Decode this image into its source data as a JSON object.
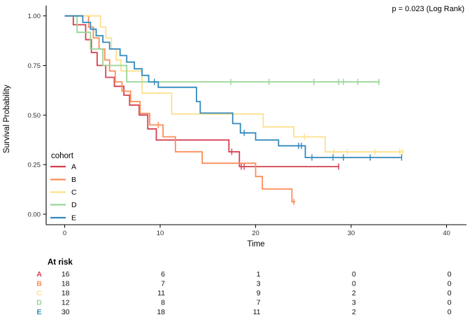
{
  "plot": {
    "pvalue_text": "p = 0.023 (Log Rank)"
  },
  "axes": {
    "x_label": "Time",
    "y_label": "Survival Probability",
    "x_ticks": [
      "0",
      "10",
      "20",
      "30",
      "40"
    ],
    "y_ticks": [
      "1.00",
      "0.75",
      "0.50",
      "0.25",
      "0.00"
    ]
  },
  "legend": {
    "title": "cohort"
  },
  "risk_table": {
    "title": "At risk",
    "times": [
      0,
      10,
      20,
      30,
      40
    ],
    "rows": [
      {
        "label": "A",
        "values": [
          "16",
          "6",
          "1",
          "0",
          "0"
        ]
      },
      {
        "label": "B",
        "values": [
          "18",
          "7",
          "3",
          "0",
          "0"
        ]
      },
      {
        "label": "C",
        "values": [
          "18",
          "11",
          "9",
          "2",
          "0"
        ]
      },
      {
        "label": "D",
        "values": [
          "12",
          "8",
          "7",
          "3",
          "0"
        ]
      },
      {
        "label": "E",
        "values": [
          "30",
          "18",
          "11",
          "2",
          "0"
        ]
      }
    ]
  },
  "chart_data": {
    "type": "line",
    "subtype": "kaplan-meier-step",
    "title": "",
    "xlabel": "Time",
    "ylabel": "Survival Probability",
    "xlim": [
      0,
      42
    ],
    "ylim": [
      0,
      1
    ],
    "x_tick_values": [
      0,
      10,
      20,
      30,
      40
    ],
    "y_tick_values": [
      1.0,
      0.75,
      0.5,
      0.25,
      0.0
    ],
    "grid": false,
    "legend_title": "cohort",
    "legend_position": "inside-bottom-left",
    "annotation": "p = 0.023 (Log Rank)",
    "series": [
      {
        "name": "A",
        "color": "#d53e4f",
        "points": [
          [
            0,
            1
          ],
          [
            0.9,
            0.955
          ],
          [
            2.2,
            0.88
          ],
          [
            2.8,
            0.815
          ],
          [
            3.4,
            0.75
          ],
          [
            4.3,
            0.69
          ],
          [
            5.2,
            0.645
          ],
          [
            6.2,
            0.6
          ],
          [
            6.8,
            0.55
          ],
          [
            7.8,
            0.5
          ],
          [
            8.7,
            0.43
          ],
          [
            9.6,
            0.374
          ],
          [
            17.2,
            0.315
          ],
          [
            18.3,
            0.24
          ]
        ],
        "end_time": 28.7,
        "censors": [
          [
            17.5,
            0.315
          ],
          [
            18.5,
            0.24
          ],
          [
            18.8,
            0.24
          ],
          [
            28.7,
            0.24
          ]
        ]
      },
      {
        "name": "B",
        "color": "#fc8d59",
        "points": [
          [
            0,
            1
          ],
          [
            2.5,
            0.944
          ],
          [
            3.0,
            0.889
          ],
          [
            3.6,
            0.833
          ],
          [
            4.2,
            0.778
          ],
          [
            4.7,
            0.722
          ],
          [
            5.3,
            0.667
          ],
          [
            6.0,
            0.62
          ],
          [
            6.9,
            0.568
          ],
          [
            7.9,
            0.508
          ],
          [
            8.9,
            0.45
          ],
          [
            10.3,
            0.39
          ],
          [
            11.6,
            0.315
          ],
          [
            14.4,
            0.257
          ],
          [
            20.0,
            0.19
          ],
          [
            20.7,
            0.127
          ],
          [
            23.8,
            0.063
          ]
        ],
        "end_time": 24.15,
        "censors": [
          [
            9.8,
            0.45
          ],
          [
            24.0,
            0.063
          ]
        ]
      },
      {
        "name": "C",
        "color": "#fee08b",
        "points": [
          [
            0,
            1
          ],
          [
            3.75,
            0.944
          ],
          [
            4.3,
            0.889
          ],
          [
            4.9,
            0.833
          ],
          [
            5.4,
            0.778
          ],
          [
            5.9,
            0.722
          ],
          [
            8.1,
            0.61
          ],
          [
            11.2,
            0.505
          ],
          [
            20.8,
            0.44
          ],
          [
            24.0,
            0.39
          ],
          [
            27.3,
            0.314
          ]
        ],
        "end_time": 35.5,
        "censors": [
          [
            25.1,
            0.39
          ],
          [
            28.2,
            0.314
          ],
          [
            29.6,
            0.314
          ],
          [
            32.5,
            0.314
          ],
          [
            35.1,
            0.314
          ],
          [
            35.4,
            0.314
          ]
        ]
      },
      {
        "name": "D",
        "color": "#99d594",
        "points": [
          [
            0,
            1
          ],
          [
            1.3,
            0.917
          ],
          [
            2.7,
            0.833
          ],
          [
            4.0,
            0.75
          ],
          [
            6.5,
            0.667
          ]
        ],
        "end_time": 33.0,
        "censors": [
          [
            17.4,
            0.667
          ],
          [
            21.4,
            0.667
          ],
          [
            26.1,
            0.667
          ],
          [
            28.7,
            0.667
          ],
          [
            29.2,
            0.667
          ],
          [
            30.7,
            0.667
          ],
          [
            32.9,
            0.667
          ]
        ]
      },
      {
        "name": "E",
        "color": "#3288bd",
        "points": [
          [
            0,
            1
          ],
          [
            1.9,
            0.967
          ],
          [
            2.7,
            0.933
          ],
          [
            3.3,
            0.9
          ],
          [
            4.0,
            0.867
          ],
          [
            4.7,
            0.833
          ],
          [
            5.8,
            0.8
          ],
          [
            6.5,
            0.767
          ],
          [
            7.3,
            0.733
          ],
          [
            8.1,
            0.7
          ],
          [
            8.8,
            0.667
          ],
          [
            9.8,
            0.64
          ],
          [
            13.8,
            0.568
          ],
          [
            14.2,
            0.51
          ],
          [
            17.6,
            0.457
          ],
          [
            18.4,
            0.41
          ],
          [
            20.0,
            0.374
          ],
          [
            22.4,
            0.345
          ],
          [
            25.2,
            0.286
          ]
        ],
        "end_time": 35.3,
        "censors": [
          [
            9.4,
            0.667
          ],
          [
            18.8,
            0.41
          ],
          [
            24.5,
            0.345
          ],
          [
            24.8,
            0.345
          ],
          [
            25.9,
            0.286
          ],
          [
            28.1,
            0.286
          ],
          [
            29.2,
            0.286
          ],
          [
            32.0,
            0.286
          ],
          [
            35.3,
            0.286
          ]
        ]
      }
    ]
  }
}
